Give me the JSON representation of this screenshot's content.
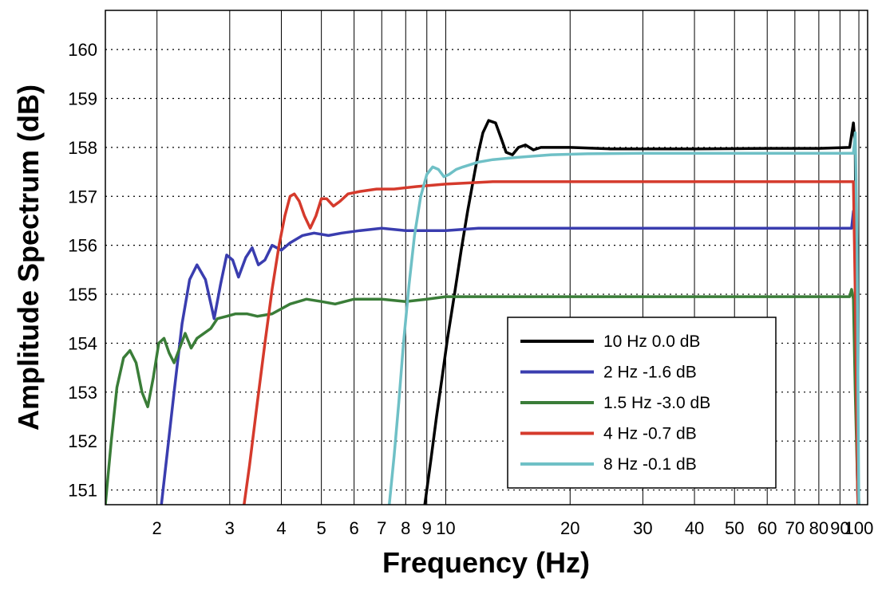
{
  "chart_data": {
    "type": "line",
    "title": "",
    "xlabel": "Frequency (Hz)",
    "ylabel": "Amplitude Spectrum (dB)",
    "xscale": "log",
    "xlim": [
      1.5,
      105
    ],
    "ylim": [
      150.7,
      160.8
    ],
    "grid": {
      "x": "solid",
      "y": "dotted"
    },
    "x_ticks": [
      {
        "v": 2,
        "label": "2"
      },
      {
        "v": 3,
        "label": "3"
      },
      {
        "v": 4,
        "label": "4"
      },
      {
        "v": 5,
        "label": "5"
      },
      {
        "v": 6,
        "label": "6"
      },
      {
        "v": 7,
        "label": "7"
      },
      {
        "v": 8,
        "label": "8"
      },
      {
        "v": 9,
        "label": "9"
      },
      {
        "v": 10,
        "label": "10"
      },
      {
        "v": 20,
        "label": "20"
      },
      {
        "v": 30,
        "label": "30"
      },
      {
        "v": 40,
        "label": "40"
      },
      {
        "v": 50,
        "label": "50"
      },
      {
        "v": 60,
        "label": "60"
      },
      {
        "v": 70,
        "label": "70"
      },
      {
        "v": 80,
        "label": "80"
      },
      {
        "v": 90,
        "label": "90"
      },
      {
        "v": 100,
        "label": "100"
      }
    ],
    "y_ticks": [
      151,
      152,
      153,
      154,
      155,
      156,
      157,
      158,
      159,
      160
    ],
    "legend_position": "lower-right",
    "series": [
      {
        "name": "10 Hz   0.0 dB",
        "color": "#000000",
        "points": [
          [
            8.9,
            150.7
          ],
          [
            9.2,
            151.6
          ],
          [
            9.5,
            152.5
          ],
          [
            9.8,
            153.3
          ],
          [
            10.1,
            154.1
          ],
          [
            10.5,
            155.0
          ],
          [
            10.9,
            155.9
          ],
          [
            11.3,
            156.7
          ],
          [
            11.7,
            157.4
          ],
          [
            12.0,
            157.9
          ],
          [
            12.3,
            158.3
          ],
          [
            12.7,
            158.55
          ],
          [
            13.2,
            158.5
          ],
          [
            13.6,
            158.2
          ],
          [
            14.0,
            157.9
          ],
          [
            14.5,
            157.85
          ],
          [
            15.0,
            158.0
          ],
          [
            15.6,
            158.05
          ],
          [
            16.3,
            157.95
          ],
          [
            17.0,
            158.0
          ],
          [
            18.0,
            158.0
          ],
          [
            20,
            158.0
          ],
          [
            25,
            157.97
          ],
          [
            40,
            157.97
          ],
          [
            60,
            157.98
          ],
          [
            80,
            157.98
          ],
          [
            95,
            158.0
          ],
          [
            97,
            158.5
          ],
          [
            98,
            158.0
          ],
          [
            99,
            152.0
          ],
          [
            100,
            150.7
          ]
        ]
      },
      {
        "name": "2 Hz -1.6 dB",
        "color": "#3a3daf",
        "points": [
          [
            2.05,
            150.7
          ],
          [
            2.12,
            151.8
          ],
          [
            2.2,
            153.0
          ],
          [
            2.3,
            154.4
          ],
          [
            2.4,
            155.3
          ],
          [
            2.5,
            155.6
          ],
          [
            2.62,
            155.3
          ],
          [
            2.75,
            154.5
          ],
          [
            2.85,
            155.2
          ],
          [
            2.95,
            155.8
          ],
          [
            3.05,
            155.7
          ],
          [
            3.15,
            155.35
          ],
          [
            3.28,
            155.75
          ],
          [
            3.4,
            155.95
          ],
          [
            3.52,
            155.6
          ],
          [
            3.65,
            155.7
          ],
          [
            3.8,
            156.0
          ],
          [
            4.0,
            155.9
          ],
          [
            4.2,
            156.05
          ],
          [
            4.5,
            156.2
          ],
          [
            4.8,
            156.25
          ],
          [
            5.2,
            156.2
          ],
          [
            5.6,
            156.25
          ],
          [
            6.2,
            156.3
          ],
          [
            7,
            156.35
          ],
          [
            8,
            156.3
          ],
          [
            9,
            156.3
          ],
          [
            10,
            156.3
          ],
          [
            12,
            156.35
          ],
          [
            20,
            156.35
          ],
          [
            50,
            156.35
          ],
          [
            80,
            156.35
          ],
          [
            96,
            156.35
          ],
          [
            97,
            156.7
          ],
          [
            98,
            156.3
          ],
          [
            99,
            151.5
          ],
          [
            99.5,
            150.7
          ]
        ]
      },
      {
        "name": "1.5 Hz -3.0 dB",
        "color": "#3a7d38",
        "points": [
          [
            1.5,
            150.7
          ],
          [
            1.55,
            152.0
          ],
          [
            1.6,
            153.1
          ],
          [
            1.66,
            153.7
          ],
          [
            1.72,
            153.85
          ],
          [
            1.78,
            153.6
          ],
          [
            1.84,
            153.0
          ],
          [
            1.9,
            152.7
          ],
          [
            1.96,
            153.3
          ],
          [
            2.02,
            154.0
          ],
          [
            2.08,
            154.1
          ],
          [
            2.14,
            153.8
          ],
          [
            2.2,
            153.6
          ],
          [
            2.27,
            153.9
          ],
          [
            2.34,
            154.2
          ],
          [
            2.42,
            153.9
          ],
          [
            2.5,
            154.1
          ],
          [
            2.6,
            154.2
          ],
          [
            2.7,
            154.3
          ],
          [
            2.8,
            154.5
          ],
          [
            2.95,
            154.55
          ],
          [
            3.1,
            154.6
          ],
          [
            3.3,
            154.6
          ],
          [
            3.5,
            154.55
          ],
          [
            3.8,
            154.6
          ],
          [
            4.2,
            154.8
          ],
          [
            4.6,
            154.9
          ],
          [
            5.0,
            154.85
          ],
          [
            5.4,
            154.8
          ],
          [
            6.0,
            154.9
          ],
          [
            7,
            154.9
          ],
          [
            8,
            154.85
          ],
          [
            9,
            154.9
          ],
          [
            10,
            154.95
          ],
          [
            15,
            154.95
          ],
          [
            40,
            154.95
          ],
          [
            80,
            154.95
          ],
          [
            95,
            154.95
          ],
          [
            96,
            155.1
          ],
          [
            97,
            154.9
          ],
          [
            98,
            153.0
          ],
          [
            99,
            151.5
          ],
          [
            99.5,
            150.7
          ]
        ]
      },
      {
        "name": "4 Hz -0.7 dB",
        "color": "#d53a2c",
        "points": [
          [
            3.25,
            150.7
          ],
          [
            3.35,
            151.5
          ],
          [
            3.5,
            152.8
          ],
          [
            3.65,
            154.0
          ],
          [
            3.8,
            155.1
          ],
          [
            3.95,
            156.0
          ],
          [
            4.08,
            156.6
          ],
          [
            4.2,
            157.0
          ],
          [
            4.3,
            157.05
          ],
          [
            4.42,
            156.9
          ],
          [
            4.55,
            156.6
          ],
          [
            4.7,
            156.35
          ],
          [
            4.85,
            156.6
          ],
          [
            5.0,
            156.95
          ],
          [
            5.15,
            156.95
          ],
          [
            5.35,
            156.8
          ],
          [
            5.55,
            156.9
          ],
          [
            5.8,
            157.05
          ],
          [
            6.2,
            157.1
          ],
          [
            6.8,
            157.15
          ],
          [
            7.5,
            157.15
          ],
          [
            8.5,
            157.2
          ],
          [
            10,
            157.25
          ],
          [
            13,
            157.3
          ],
          [
            20,
            157.3
          ],
          [
            50,
            157.3
          ],
          [
            80,
            157.3
          ],
          [
            97,
            157.3
          ],
          [
            98,
            155.0
          ],
          [
            99,
            152.0
          ],
          [
            99.5,
            150.7
          ]
        ]
      },
      {
        "name": "8 Hz -0.1 dB",
        "color": "#6fc0c6",
        "points": [
          [
            7.3,
            150.7
          ],
          [
            7.5,
            151.7
          ],
          [
            7.7,
            152.8
          ],
          [
            7.9,
            154.0
          ],
          [
            8.15,
            155.2
          ],
          [
            8.4,
            156.2
          ],
          [
            8.7,
            157.0
          ],
          [
            9.0,
            157.45
          ],
          [
            9.3,
            157.6
          ],
          [
            9.6,
            157.55
          ],
          [
            9.9,
            157.4
          ],
          [
            10.2,
            157.45
          ],
          [
            10.6,
            157.55
          ],
          [
            11.0,
            157.6
          ],
          [
            12,
            157.7
          ],
          [
            13,
            157.75
          ],
          [
            15,
            157.8
          ],
          [
            18,
            157.85
          ],
          [
            22,
            157.87
          ],
          [
            30,
            157.88
          ],
          [
            50,
            157.88
          ],
          [
            80,
            157.88
          ],
          [
            97,
            157.88
          ],
          [
            98,
            158.3
          ],
          [
            99,
            156.0
          ],
          [
            99.5,
            153.0
          ],
          [
            100,
            150.7
          ]
        ]
      }
    ]
  }
}
